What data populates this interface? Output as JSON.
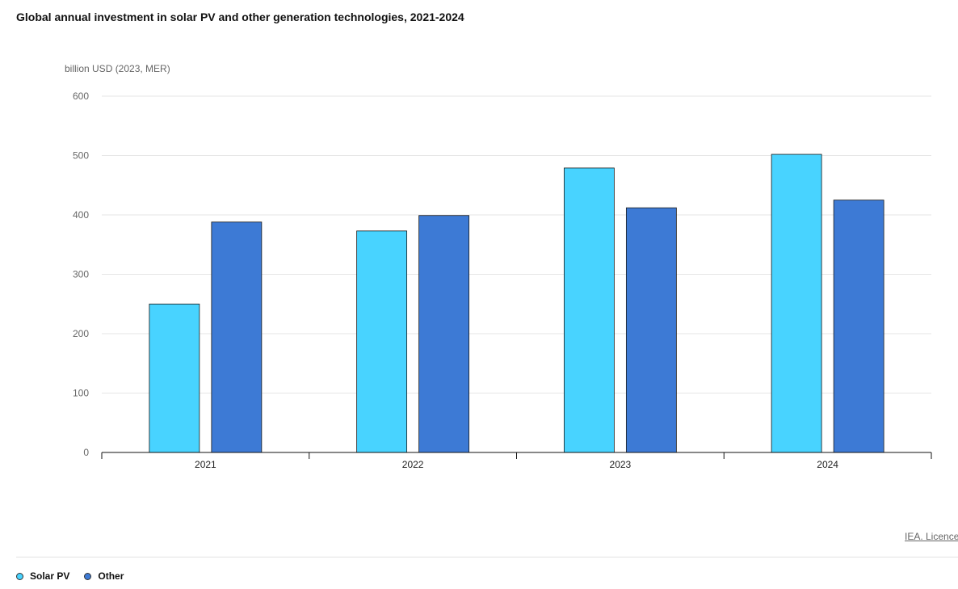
{
  "title": "Global annual investment in solar PV and other generation technologies, 2021-2024",
  "credit": "IEA. Licence",
  "colors": {
    "solar": "#48d3ff",
    "other": "#3d7ad5"
  },
  "chart_data": {
    "type": "bar",
    "title": "Global annual investment in solar PV and other generation technologies, 2021-2024",
    "ylabel": "billion USD (2023, MER)",
    "xlabel": "",
    "categories": [
      "2021",
      "2022",
      "2023",
      "2024"
    ],
    "ylim": [
      0,
      600
    ],
    "yticks": [
      "0",
      "100",
      "200",
      "300",
      "400",
      "500",
      "600"
    ],
    "grid": true,
    "legend_position": "bottom-left",
    "series": [
      {
        "name": "Solar PV",
        "color": "#48d3ff",
        "values": [
          250,
          373,
          479,
          502
        ]
      },
      {
        "name": "Other",
        "color": "#3d7ad5",
        "values": [
          388,
          399,
          412,
          425
        ]
      }
    ]
  }
}
